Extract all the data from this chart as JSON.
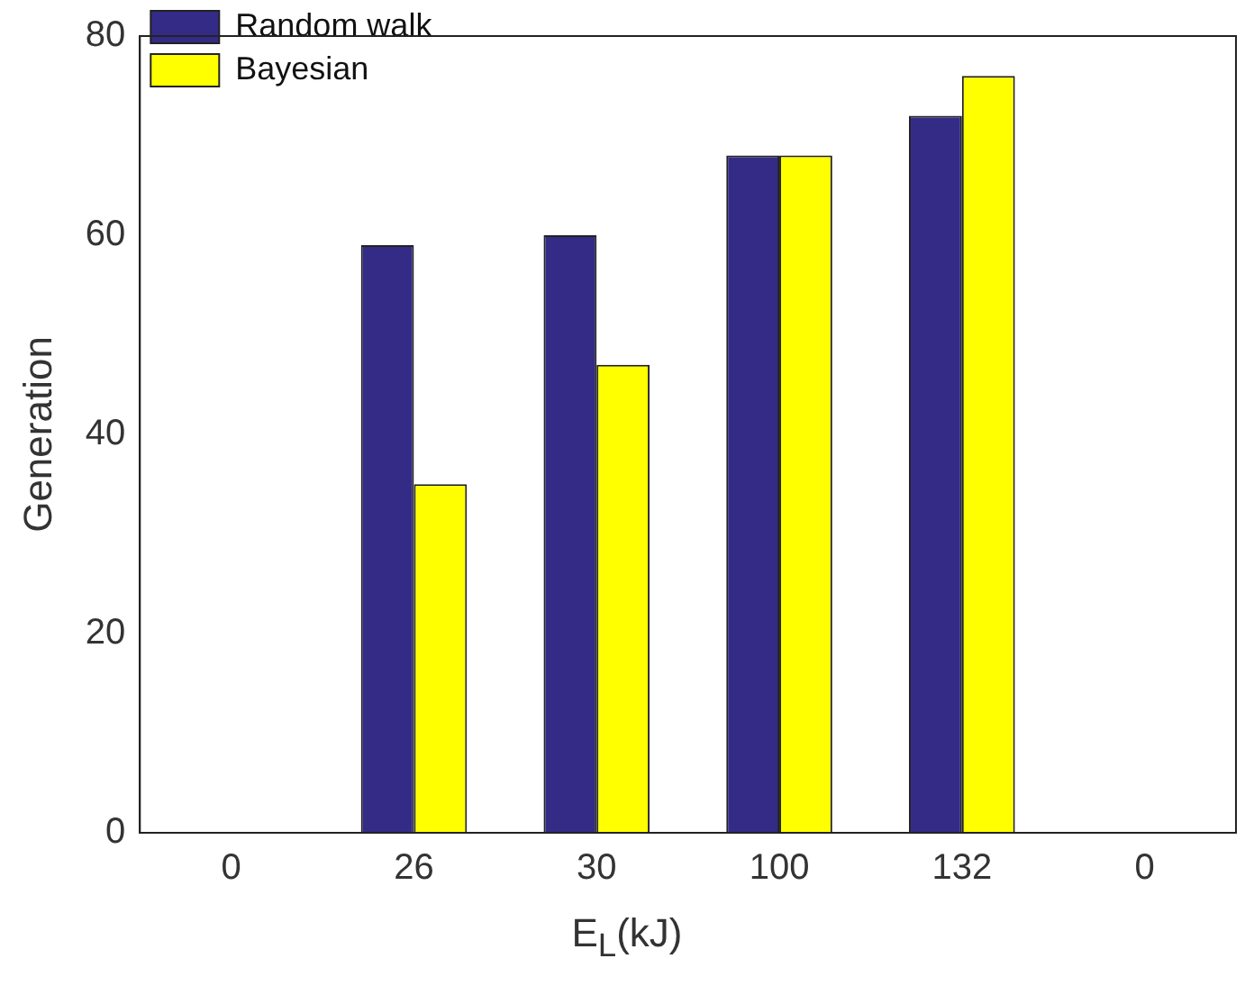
{
  "chart_data": {
    "type": "bar",
    "xlabel": "E$_{L}$(kJ)",
    "ylabel": "Generation",
    "categories": [
      "0",
      "26",
      "30",
      "100",
      "132",
      "0"
    ],
    "series": [
      {
        "name": "Random walk",
        "color": "#332b86",
        "values": [
          null,
          59,
          60,
          68,
          72,
          null
        ]
      },
      {
        "name": "Bayesian",
        "color": "#ffff00",
        "values": [
          null,
          35,
          47,
          68,
          76,
          null
        ]
      }
    ],
    "ylim": [
      0,
      80
    ],
    "yticks": [
      0,
      20,
      40,
      60,
      80
    ],
    "grid": false,
    "legend": "top left"
  }
}
